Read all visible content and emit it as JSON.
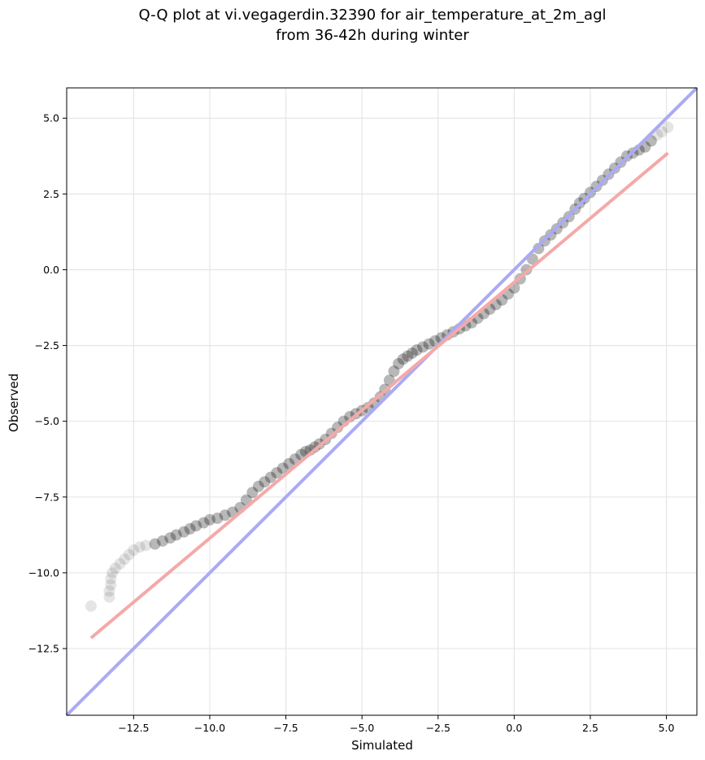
{
  "chart_data": {
    "type": "scatter",
    "title": "Q-Q plot at vi.vegagerdin.32390 for air_temperature_at_2m_agl",
    "subtitle": "from 36-42h during winter",
    "xlabel": "Simulated",
    "ylabel": "Observed",
    "xlim": [
      -14.7,
      6.0
    ],
    "ylim": [
      -14.7,
      6.0
    ],
    "xticks": [
      -12.5,
      -10.0,
      -7.5,
      -5.0,
      -2.5,
      0.0,
      2.5,
      5.0
    ],
    "xtick_labels": [
      "−12.5",
      "−10.0",
      "−7.5",
      "−5.0",
      "−2.5",
      "0.0",
      "2.5",
      "5.0"
    ],
    "yticks": [
      -12.5,
      -10.0,
      -7.5,
      -5.0,
      -2.5,
      0.0,
      2.5,
      5.0
    ],
    "ytick_labels": [
      "−12.5",
      "−10.0",
      "−7.5",
      "−5.0",
      "−2.5",
      "0.0",
      "2.5",
      "5.0"
    ],
    "grid": true,
    "colors": {
      "points": "#000000",
      "identity_line": "#aaaaf5",
      "fit_line": "#f4a9a9",
      "grid": "#e6e6e6"
    },
    "series": [
      {
        "type": "scatter",
        "x": [
          -13.9,
          -13.3,
          -13.3,
          -13.25,
          -13.25,
          -13.2,
          -13.1,
          -12.95,
          -12.8,
          -12.65,
          -12.5,
          -12.3,
          -12.1,
          -11.8,
          -11.55,
          -11.3,
          -11.1,
          -10.85,
          -10.65,
          -10.45,
          -10.2,
          -10.0,
          -9.75,
          -9.5,
          -9.25,
          -9.0,
          -8.8,
          -8.6,
          -8.4,
          -8.2,
          -8.0,
          -7.8,
          -7.6,
          -7.4,
          -7.2,
          -7.0,
          -6.85,
          -6.7,
          -6.55,
          -6.4,
          -6.2,
          -6.0,
          -5.8,
          -5.6,
          -5.4,
          -5.2,
          -5.0,
          -4.8,
          -4.6,
          -4.4,
          -4.25,
          -4.1,
          -3.95,
          -3.8,
          -3.65,
          -3.5,
          -3.35,
          -3.2,
          -3.0,
          -2.8,
          -2.6,
          -2.4,
          -2.2,
          -2.0,
          -1.8,
          -1.6,
          -1.4,
          -1.2,
          -1.0,
          -0.8,
          -0.6,
          -0.4,
          -0.2,
          0.0,
          0.2,
          0.4,
          0.6,
          0.8,
          1.0,
          1.2,
          1.4,
          1.6,
          1.8,
          2.0,
          2.15,
          2.3,
          2.5,
          2.7,
          2.9,
          3.1,
          3.3,
          3.5,
          3.7,
          3.9,
          4.1,
          4.3,
          4.5,
          4.7,
          4.85,
          5.05
        ],
        "y": [
          -11.1,
          -10.8,
          -10.6,
          -10.4,
          -10.2,
          -10.0,
          -9.85,
          -9.7,
          -9.55,
          -9.4,
          -9.25,
          -9.15,
          -9.1,
          -9.05,
          -8.95,
          -8.85,
          -8.75,
          -8.65,
          -8.55,
          -8.45,
          -8.35,
          -8.25,
          -8.2,
          -8.1,
          -8.0,
          -7.85,
          -7.6,
          -7.35,
          -7.15,
          -7.0,
          -6.85,
          -6.7,
          -6.55,
          -6.4,
          -6.25,
          -6.1,
          -6.0,
          -5.95,
          -5.85,
          -5.75,
          -5.6,
          -5.4,
          -5.2,
          -5.0,
          -4.85,
          -4.75,
          -4.65,
          -4.55,
          -4.4,
          -4.2,
          -3.95,
          -3.65,
          -3.35,
          -3.1,
          -2.95,
          -2.85,
          -2.75,
          -2.65,
          -2.55,
          -2.45,
          -2.35,
          -2.25,
          -2.15,
          -2.05,
          -1.95,
          -1.85,
          -1.75,
          -1.6,
          -1.45,
          -1.3,
          -1.15,
          -1.0,
          -0.8,
          -0.6,
          -0.3,
          0.0,
          0.35,
          0.7,
          0.95,
          1.15,
          1.35,
          1.55,
          1.75,
          2.0,
          2.2,
          2.35,
          2.55,
          2.75,
          2.95,
          3.15,
          3.35,
          3.55,
          3.75,
          3.85,
          3.95,
          4.05,
          4.25,
          4.45,
          4.55,
          4.7
        ]
      },
      {
        "type": "line",
        "x": [
          -14.7,
          6.0
        ],
        "y": [
          -14.7,
          6.0
        ]
      },
      {
        "type": "line",
        "x": [
          -13.9,
          5.05
        ],
        "y": [
          -12.15,
          3.85
        ]
      }
    ]
  }
}
